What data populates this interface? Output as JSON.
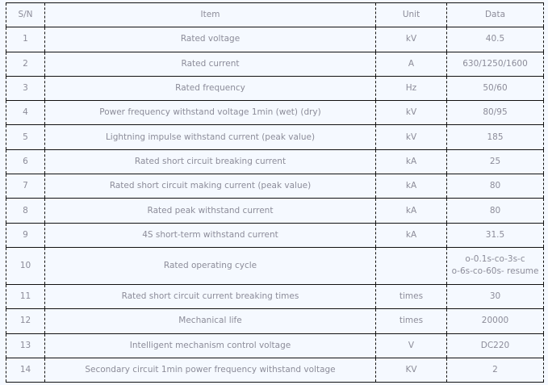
{
  "headers": [
    "S/N",
    "Item",
    "Unit",
    "Data"
  ],
  "rows": [
    {
      "sn": "1",
      "item": "Rated voltage",
      "unit": "kV",
      "data": "40.5"
    },
    {
      "sn": "2",
      "item": "Rated current",
      "unit": "A",
      "data": "630/1250/1600"
    },
    {
      "sn": "3",
      "item": "Rated frequency",
      "unit": "Hz",
      "data": "50/60"
    },
    {
      "sn": "4",
      "item": "Power frequency withstand voltage 1min (wet) (dry)",
      "unit": "kV",
      "data": "80/95"
    },
    {
      "sn": "5",
      "item": "Lightning impulse withstand current (peak value)",
      "unit": "kV",
      "data": "185"
    },
    {
      "sn": "6",
      "item": "Rated short circuit breaking current",
      "unit": "kA",
      "data": "25"
    },
    {
      "sn": "7",
      "item": "Rated short circuit making current (peak value)",
      "unit": "kA",
      "data": "80"
    },
    {
      "sn": "8",
      "item": "Rated peak withstand current",
      "unit": "kA",
      "data": "80"
    },
    {
      "sn": "9",
      "item": "4S short-term withstand current",
      "unit": "kA",
      "data": "31.5"
    },
    {
      "sn": "10",
      "item": "Rated operating cycle",
      "unit": "",
      "data": "o-0.1s-co-3s-c",
      "data2": "o-6s-co-60s- resume"
    },
    {
      "sn": "11",
      "item": "Rated short circuit current breaking times",
      "unit": "times",
      "data": "30"
    },
    {
      "sn": "12",
      "item": "Mechanical life",
      "unit": "times",
      "data": "20000"
    },
    {
      "sn": "13",
      "item": "Intelligent mechanism control voltage",
      "unit": "V",
      "data": "DC220"
    },
    {
      "sn": "14",
      "item": "Secondary circuit 1min power frequency withstand voltage",
      "unit": "KV",
      "data": "2"
    }
  ]
}
